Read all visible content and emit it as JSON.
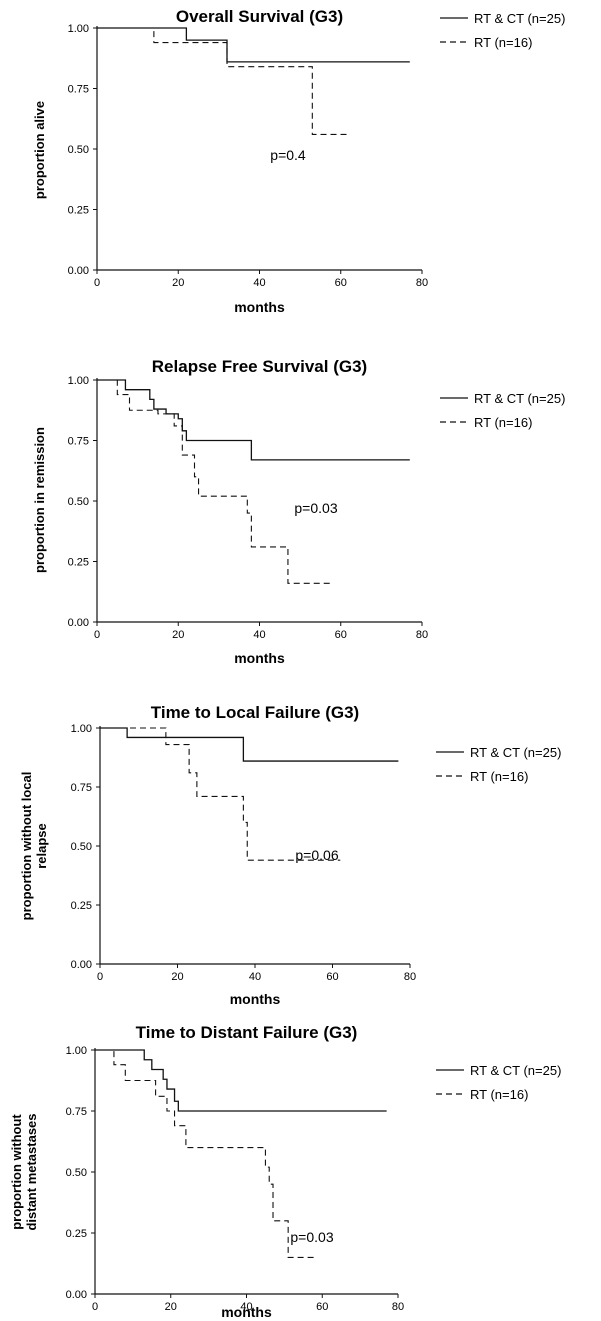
{
  "chart_data": [
    {
      "type": "line",
      "title": "Overall Survival (G3)",
      "xlabel": "months",
      "ylabel": [
        "proportion alive"
      ],
      "xlim": [
        0,
        80
      ],
      "ylim": [
        0,
        1
      ],
      "x_ticks": [
        "0",
        "20",
        "40",
        "60",
        "80"
      ],
      "y_ticks": [
        "0.00",
        "0.25",
        "0.50",
        "0.75",
        "1.00"
      ],
      "annotation": "p=0.4",
      "legend_position": "top-right",
      "series": [
        {
          "name": "RT & CT (n=25)",
          "style": "solid",
          "steps": [
            [
              0,
              1.0
            ],
            [
              22,
              0.95
            ],
            [
              32,
              0.86
            ],
            [
              77,
              0.86
            ]
          ]
        },
        {
          "name": "RT (n=16)",
          "style": "dashed",
          "steps": [
            [
              0,
              1.0
            ],
            [
              14,
              0.94
            ],
            [
              32,
              0.84
            ],
            [
              53,
              0.56
            ],
            [
              62,
              0.56
            ]
          ]
        }
      ]
    },
    {
      "type": "line",
      "title": "Relapse Free Survival (G3)",
      "xlabel": "months",
      "ylabel": [
        "proportion in remission"
      ],
      "xlim": [
        0,
        80
      ],
      "ylim": [
        0,
        1
      ],
      "x_ticks": [
        "0",
        "20",
        "40",
        "60",
        "80"
      ],
      "y_ticks": [
        "0.00",
        "0.25",
        "0.50",
        "0.75",
        "1.00"
      ],
      "annotation": "p=0.03",
      "legend_position": "top-right",
      "series": [
        {
          "name": "RT & CT (n=25)",
          "style": "solid",
          "steps": [
            [
              0,
              1.0
            ],
            [
              7,
              0.96
            ],
            [
              13,
              0.92
            ],
            [
              14,
              0.88
            ],
            [
              17,
              0.86
            ],
            [
              20,
              0.84
            ],
            [
              21,
              0.79
            ],
            [
              22,
              0.75
            ],
            [
              38,
              0.67
            ],
            [
              77,
              0.67
            ]
          ]
        },
        {
          "name": "RT (n=16)",
          "style": "dashed",
          "steps": [
            [
              0,
              1.0
            ],
            [
              5,
              0.94
            ],
            [
              8,
              0.875
            ],
            [
              15,
              0.86
            ],
            [
              19,
              0.81
            ],
            [
              21,
              0.69
            ],
            [
              24,
              0.6
            ],
            [
              25,
              0.52
            ],
            [
              37,
              0.45
            ],
            [
              38,
              0.31
            ],
            [
              47,
              0.16
            ],
            [
              58,
              0.16
            ]
          ]
        }
      ]
    },
    {
      "type": "line",
      "title": "Time to Local Failure (G3)",
      "xlabel": "months",
      "ylabel": [
        "proportion without local",
        "relapse"
      ],
      "xlim": [
        0,
        80
      ],
      "ylim": [
        0,
        1
      ],
      "x_ticks": [
        "0",
        "20",
        "40",
        "60",
        "80"
      ],
      "y_ticks": [
        "0.00",
        "0.25",
        "0.50",
        "0.75",
        "1.00"
      ],
      "annotation": "p=0.06",
      "legend_position": "top-right",
      "series": [
        {
          "name": "RT & CT (n=25)",
          "style": "solid",
          "steps": [
            [
              0,
              1.0
            ],
            [
              7,
              0.96
            ],
            [
              37,
              0.86
            ],
            [
              77,
              0.86
            ]
          ]
        },
        {
          "name": "RT (n=16)",
          "style": "dashed",
          "steps": [
            [
              0,
              1.0
            ],
            [
              17,
              0.93
            ],
            [
              23,
              0.81
            ],
            [
              25,
              0.71
            ],
            [
              37,
              0.6
            ],
            [
              38,
              0.44
            ],
            [
              62,
              0.44
            ]
          ]
        }
      ]
    },
    {
      "type": "line",
      "title": "Time to Distant Failure (G3)",
      "xlabel": "months",
      "ylabel": [
        "proportion without",
        "distant metastases"
      ],
      "xlim": [
        0,
        80
      ],
      "ylim": [
        0,
        1
      ],
      "x_ticks": [
        "0",
        "20",
        "40",
        "60",
        "80"
      ],
      "y_ticks": [
        "0.00",
        "0.25",
        "0.50",
        "0.75",
        "1.00"
      ],
      "annotation": "p=0.03",
      "legend_position": "top-right",
      "series": [
        {
          "name": "RT & CT (n=25)",
          "style": "solid",
          "steps": [
            [
              0,
              1.0
            ],
            [
              13,
              0.96
            ],
            [
              15,
              0.92
            ],
            [
              18,
              0.88
            ],
            [
              19,
              0.84
            ],
            [
              21,
              0.79
            ],
            [
              22,
              0.75
            ],
            [
              77,
              0.75
            ]
          ]
        },
        {
          "name": "RT (n=16)",
          "style": "dashed",
          "steps": [
            [
              0,
              1.0
            ],
            [
              5,
              0.94
            ],
            [
              8,
              0.875
            ],
            [
              16,
              0.81
            ],
            [
              19,
              0.75
            ],
            [
              21,
              0.69
            ],
            [
              24,
              0.6
            ],
            [
              45,
              0.52
            ],
            [
              46,
              0.45
            ],
            [
              47,
              0.3
            ],
            [
              51,
              0.15
            ],
            [
              58,
              0.15
            ]
          ]
        }
      ]
    }
  ]
}
